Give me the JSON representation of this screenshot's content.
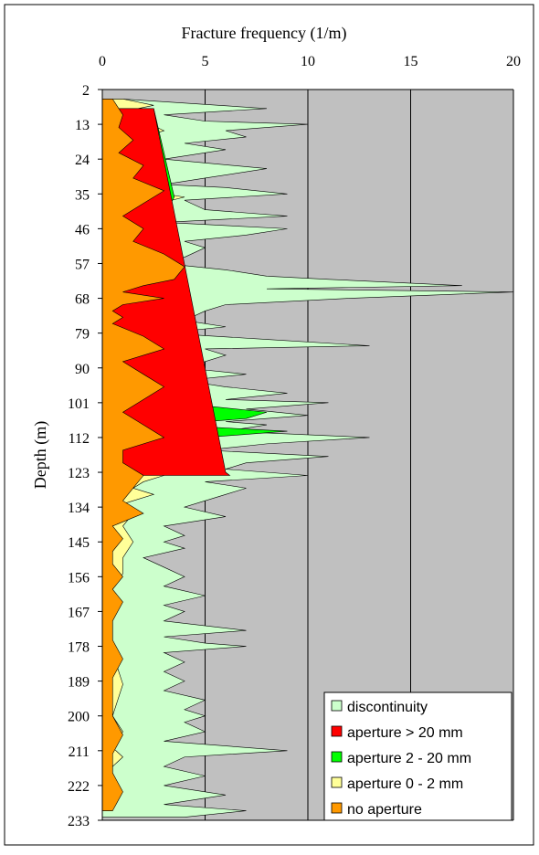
{
  "chart_data": {
    "type": "area",
    "title": "Fracture frequency (1/m)",
    "xlabel": "Fracture frequency (1/m)",
    "ylabel": "Depth (m)",
    "xlim": [
      0,
      20
    ],
    "ylim": [
      2,
      233
    ],
    "x_ticks": [
      "0",
      "5",
      "10",
      "15",
      "20"
    ],
    "y_ticks": [
      "2",
      "13",
      "24",
      "35",
      "46",
      "57",
      "68",
      "79",
      "90",
      "101",
      "112",
      "123",
      "134",
      "145",
      "156",
      "167",
      "178",
      "189",
      "200",
      "211",
      "222",
      "233"
    ],
    "grid": "vertical",
    "legend_position": "bottom-right",
    "legend": [
      {
        "label": "discontinuity",
        "color": "#ccffcc"
      },
      {
        "label": "aperture > 20 mm",
        "color": "#ff0000"
      },
      {
        "label": "aperture 2 - 20 mm",
        "color": "#00ff00"
      },
      {
        "label": "aperture 0 - 2 mm",
        "color": "#ffff99"
      },
      {
        "label": "no aperture",
        "color": "#ff9900"
      }
    ],
    "plot_background": "#c0c0c0",
    "series": [
      {
        "name": "discontinuity",
        "color": "#ccffcc",
        "depth": [
          5,
          8,
          10,
          12,
          13,
          15,
          17,
          19,
          21,
          24,
          27,
          30,
          32,
          33,
          35,
          37,
          40,
          42,
          44,
          46,
          48,
          50,
          52,
          55,
          57,
          59,
          61,
          62,
          64,
          65,
          66,
          68,
          70,
          72,
          75,
          77,
          79,
          81,
          83,
          84,
          86,
          88,
          90,
          92,
          94,
          96,
          98,
          100,
          101,
          103,
          105,
          107,
          108,
          110,
          112,
          114,
          116,
          118,
          120,
          122,
          124,
          126,
          128,
          130,
          132,
          134,
          137,
          140,
          143,
          145,
          147,
          150,
          153,
          156,
          159,
          162,
          165,
          167,
          170,
          173,
          175,
          177,
          178,
          180,
          183,
          186,
          189,
          192,
          195,
          198,
          200,
          202,
          205,
          208,
          211,
          213,
          216,
          219,
          222,
          225,
          228,
          230,
          232
        ],
        "values": [
          1,
          8,
          3,
          5,
          10,
          6,
          7,
          4,
          6,
          3,
          8,
          5,
          3,
          6,
          9,
          4,
          5,
          9,
          3,
          9,
          7,
          4,
          5,
          4,
          3,
          6,
          8,
          11,
          17.5,
          8,
          20,
          12,
          6,
          5,
          4,
          6,
          3,
          8,
          13,
          5,
          6,
          5,
          4,
          7,
          4,
          6,
          9,
          6,
          11,
          7,
          10,
          6,
          8,
          6,
          13,
          8,
          5,
          11,
          7,
          6,
          10,
          5,
          7,
          6,
          5,
          4,
          6,
          3,
          4,
          3,
          4,
          2,
          3,
          4,
          3,
          5,
          3,
          4,
          3,
          7,
          3,
          5,
          7,
          3,
          4,
          3,
          4,
          3,
          5,
          4,
          5,
          4,
          5,
          3,
          9,
          4,
          3,
          5,
          3,
          6,
          3,
          7,
          4
        ]
      },
      {
        "name": "aperture 0 - 2 mm",
        "color": "#ffff99",
        "depth": [
          5,
          7,
          9,
          12,
          15,
          18,
          21,
          24,
          27,
          30,
          33,
          36,
          40,
          45,
          50,
          55,
          58,
          60,
          63,
          66,
          69,
          72,
          75,
          80,
          85,
          90,
          95,
          98,
          100,
          102,
          104,
          106,
          108,
          110,
          112,
          114,
          116,
          118,
          120,
          122,
          124,
          126,
          128,
          130,
          133,
          136,
          140,
          145,
          150,
          155,
          160,
          170,
          180,
          190,
          200,
          205,
          210,
          213,
          216,
          220,
          225,
          230
        ],
        "values": [
          1,
          2.5,
          1,
          2,
          3,
          1.5,
          2,
          3,
          2,
          3,
          1,
          4,
          1.5,
          2,
          1,
          3.5,
          4,
          3,
          2,
          1,
          1.5,
          1,
          2,
          3,
          2,
          3,
          2,
          3,
          4,
          5,
          7,
          4,
          3,
          6,
          3,
          2,
          4,
          2,
          3,
          1.5,
          3,
          2,
          1.5,
          2.5,
          1,
          1.5,
          1,
          1.5,
          1,
          1,
          0.5,
          0.5,
          0.5,
          1,
          0.5,
          1,
          0.5,
          1,
          0.5,
          0.5,
          0.5,
          0.5
        ]
      },
      {
        "name": "aperture 2 - 20 mm",
        "color": "#00ff00",
        "depth": [
          8,
          36,
          72,
          74,
          76,
          86,
          102,
          104,
          106,
          108,
          110,
          112
        ],
        "values": [
          2.5,
          3.5,
          0.5,
          1,
          0.5,
          1,
          5,
          8,
          7,
          3,
          9,
          5
        ]
      },
      {
        "name": "aperture > 20 mm",
        "color": "#ff0000",
        "depth": [
          8,
          123,
          124
        ],
        "values": [
          2.5,
          6,
          6.2
        ]
      },
      {
        "name": "no aperture",
        "color": "#ff9900",
        "depth": [
          5,
          10,
          14,
          18,
          22,
          26,
          30,
          34,
          38,
          42,
          46,
          50,
          54,
          58,
          62,
          64,
          66,
          68,
          70,
          72,
          74,
          76,
          80,
          84,
          86,
          88,
          92,
          96,
          100,
          104,
          108,
          112,
          116,
          120,
          124,
          128,
          132,
          136,
          140,
          144,
          148,
          152,
          156,
          160,
          164,
          170,
          176,
          182,
          188,
          194,
          200,
          206,
          212,
          218,
          224,
          230
        ],
        "values": [
          0.5,
          1,
          0.8,
          1.5,
          0.8,
          2,
          1.5,
          3,
          2,
          1,
          2,
          1.5,
          3,
          4,
          3.5,
          2,
          1,
          3,
          1,
          0.5,
          1,
          0.5,
          2,
          3,
          2,
          1,
          2,
          3,
          2,
          1,
          2,
          3,
          1,
          1,
          2,
          1.5,
          1,
          2,
          0.5,
          1,
          0.5,
          0.5,
          1,
          0.5,
          1,
          0.5,
          0.5,
          1,
          0.5,
          0.5,
          0.5,
          1,
          0.5,
          0.5,
          1,
          0.5
        ]
      }
    ]
  }
}
